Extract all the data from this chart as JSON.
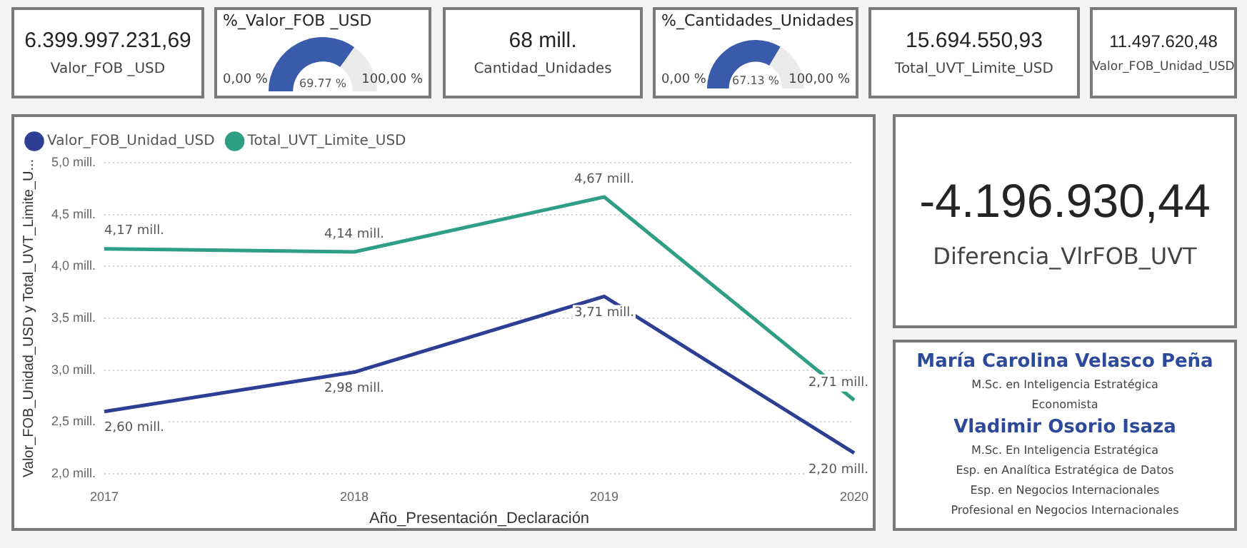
{
  "chart_data": [
    {
      "type": "other",
      "title": "Valor_FOB _USD",
      "annotations": [
        "6.399.997.231,69"
      ]
    },
    {
      "type": "donut",
      "title": "%_Valor_FOB _USD",
      "categories": [
        null,
        null
      ],
      "values": [
        69.77,
        30.23
      ],
      "colors": [
        "#3a5bab",
        "#ebebeb"
      ],
      "value_labels": [
        "69.77 %",
        null
      ],
      "annotations": [
        "0,00 %",
        "100,00 %"
      ]
    },
    {
      "type": "other",
      "title": "Cantidad_Unidades",
      "annotations": [
        "68 mill."
      ]
    },
    {
      "type": "donut",
      "title": "%_Cantidades_Unidades",
      "categories": [
        null,
        null
      ],
      "values": [
        67.13,
        32.87
      ],
      "colors": [
        "#3a5bab",
        "#ebebeb"
      ],
      "value_labels": [
        "67.13 %",
        null
      ],
      "annotations": [
        "0,00 %",
        "100,00 %"
      ]
    },
    {
      "type": "other",
      "title": "Total_UVT_Limite_USD",
      "annotations": [
        "15.694.550,93"
      ]
    },
    {
      "type": "other",
      "title": "Valor_FOB_Unidad_USD",
      "annotations": [
        "11.497.620,48"
      ]
    },
    {
      "type": "line",
      "xlabel": "Año_Presentación_Declaración",
      "ylabel": "Valor_FOB_Unidad_USD y Total_UVT_Limite_U...",
      "categories": [
        "2017",
        "2018",
        "2019",
        "2020"
      ],
      "series": [
        {
          "name": "Valor_FOB_Unidad_USD",
          "color": "#2d3f94",
          "values": [
            2.6,
            2.98,
            3.71,
            2.2
          ],
          "value_labels": [
            "2,60 mill.",
            "2,98 mill.",
            "3,71 mill.",
            "2,20 mill."
          ]
        },
        {
          "name": "Total_UVT_Limite_USD",
          "color": "#2e9e85",
          "values": [
            4.17,
            4.14,
            4.67,
            2.71
          ],
          "value_labels": [
            "4,17 mill.",
            "4,14 mill.",
            "4,67 mill.",
            "2,71 mill."
          ]
        }
      ],
      "ylim": [
        2,
        5
      ],
      "yticks": [
        {
          "value": 2,
          "label": "2,0 mill."
        },
        {
          "value": 2.5,
          "label": "2,5 mill."
        },
        {
          "value": 3,
          "label": "3,0 mill."
        },
        {
          "value": 3.5,
          "label": "3,5 mill."
        },
        {
          "value": 4,
          "label": "4,0 mill."
        },
        {
          "value": 4.5,
          "label": "4,5 mill."
        },
        {
          "value": 5,
          "label": "5,0 mill."
        }
      ],
      "grid": "y",
      "legend": "top left",
      "marker": "none",
      "line_style": "solid"
    },
    {
      "type": "other",
      "title": "Diferencia_VlrFOB_UVT",
      "annotations": [
        "-4.196.930,44"
      ]
    },
    {
      "type": "other",
      "annotations": [
        "María Carolina Velasco Peña",
        "M.Sc. en Inteligencia Estratégica",
        "Economista",
        "Vladimir Osorio Isaza",
        "M.Sc. En Inteligencia Estratégica",
        "Esp. en Analítica Estratégica de Datos",
        "Esp. en Negocios Internacionales",
        "Profesional en Negocios Internacionales"
      ]
    }
  ]
}
